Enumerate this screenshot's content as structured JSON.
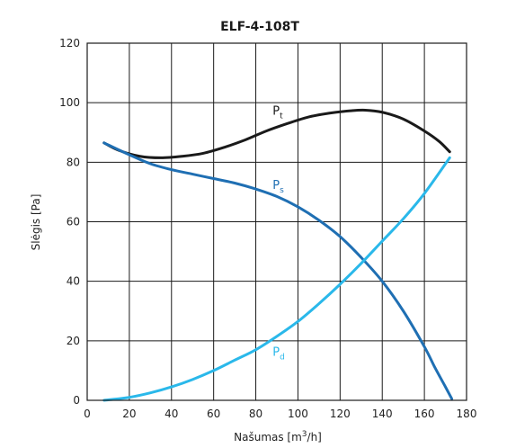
{
  "chart_data": {
    "type": "line",
    "title": "ELF-4-108T",
    "xlabel": {
      "prefix": "Našumas [m",
      "sup": "3",
      "suffix": "/h]"
    },
    "ylabel": "Slėgis [Pa]",
    "xlim": [
      0,
      180
    ],
    "ylim": [
      0,
      120
    ],
    "x_ticks": [
      0,
      20,
      40,
      60,
      80,
      100,
      120,
      140,
      160,
      180
    ],
    "y_ticks": [
      0,
      20,
      40,
      60,
      80,
      100,
      120
    ],
    "grid": true,
    "legend": "none",
    "series": [
      {
        "name": "Pt",
        "label_main": "P",
        "label_sub": "t",
        "color": "#1a1a1a",
        "label_at": [
          88,
          96
        ],
        "x": [
          8,
          15,
          25,
          35,
          45,
          55,
          65,
          75,
          85,
          95,
          105,
          115,
          125,
          132,
          140,
          150,
          160,
          167,
          172
        ],
        "y": [
          86.5,
          84,
          82,
          81.5,
          82,
          83,
          85,
          87.5,
          90.5,
          93,
          95.2,
          96.5,
          97.3,
          97.5,
          96.8,
          94.5,
          90.5,
          87,
          83.5
        ]
      },
      {
        "name": "Ps",
        "label_main": "P",
        "label_sub": "s",
        "color": "#1f6fb3",
        "label_at": [
          88,
          71
        ],
        "x": [
          8,
          20,
          30,
          40,
          50,
          60,
          70,
          80,
          90,
          100,
          110,
          120,
          130,
          140,
          150,
          160,
          165,
          170,
          173
        ],
        "y": [
          86.5,
          82.5,
          79.5,
          77.5,
          76,
          74.5,
          73,
          71,
          68.5,
          65,
          60.5,
          55,
          48,
          40,
          30,
          18,
          11,
          4.5,
          0.5
        ]
      },
      {
        "name": "Pd",
        "label_main": "P",
        "label_sub": "d",
        "color": "#2ab8ea",
        "label_at": [
          88,
          15
        ],
        "x": [
          8,
          20,
          30,
          40,
          50,
          60,
          70,
          80,
          90,
          100,
          110,
          120,
          130,
          140,
          150,
          160,
          172
        ],
        "y": [
          0,
          1,
          2.5,
          4.5,
          7,
          10,
          13.5,
          17,
          21.5,
          26.5,
          32.5,
          39,
          46,
          53.5,
          61,
          69.5,
          81.5
        ]
      }
    ]
  }
}
